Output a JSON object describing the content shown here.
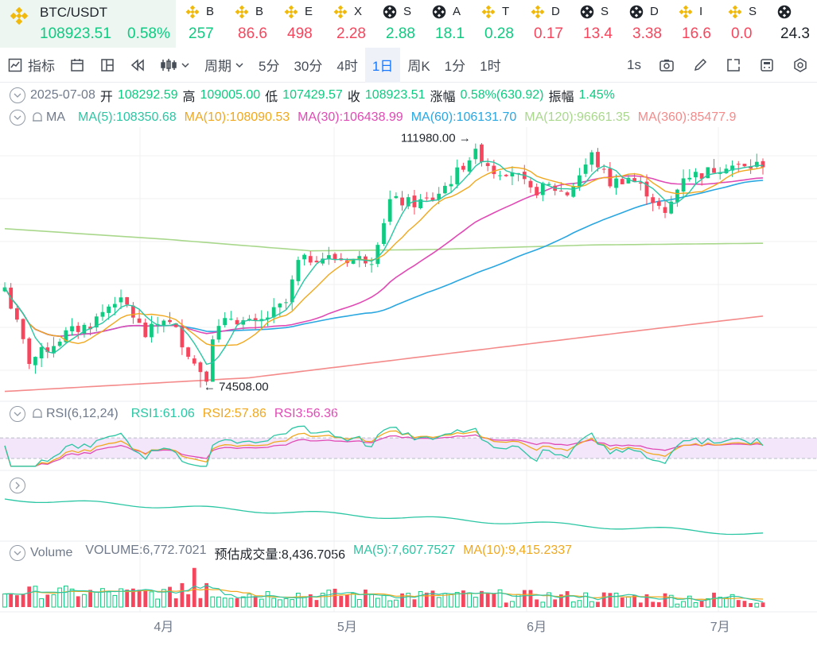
{
  "pair": {
    "name": "BTC/USDT",
    "price": "108923.51",
    "change": "0.58%"
  },
  "tickers": [
    {
      "icon": "bnb",
      "name": "B",
      "value": "257",
      "dir": "up"
    },
    {
      "icon": "bnb",
      "name": "B",
      "value": "86.6",
      "dir": "dn"
    },
    {
      "icon": "bnb",
      "name": "E",
      "value": "498",
      "dir": "dn"
    },
    {
      "icon": "bnb",
      "name": "X",
      "value": "2.28",
      "dir": "dn"
    },
    {
      "icon": "chain",
      "name": "S",
      "value": "2.88",
      "dir": "up"
    },
    {
      "icon": "chain",
      "name": "A",
      "value": "18.1",
      "dir": "up"
    },
    {
      "icon": "bnb",
      "name": "T",
      "value": "0.28",
      "dir": "up"
    },
    {
      "icon": "bnb",
      "name": "D",
      "value": "0.17",
      "dir": "dn"
    },
    {
      "icon": "chain",
      "name": "S",
      "value": "13.4",
      "dir": "dn"
    },
    {
      "icon": "chain",
      "name": "D",
      "value": "3.38",
      "dir": "dn"
    },
    {
      "icon": "bnb",
      "name": "I",
      "value": "16.6",
      "dir": "dn"
    },
    {
      "icon": "bnb",
      "name": "S",
      "value": "0.0",
      "dir": "dn"
    },
    {
      "icon": "chain",
      "name": "",
      "value": "24.3",
      "dir": "neu"
    }
  ],
  "toolbar": {
    "indicator": "指标",
    "period": "周期",
    "intervals": [
      "5分",
      "30分",
      "4时",
      "1日",
      "周K",
      "1分",
      "1时"
    ],
    "active": "1日",
    "refresh": "1s"
  },
  "ohlc": {
    "date": "2025-07-08",
    "open_l": "开",
    "open": "108292.59",
    "high_l": "高",
    "high": "109005.00",
    "low_l": "低",
    "low": "107429.57",
    "close_l": "收",
    "close": "108923.51",
    "chg_l": "涨幅",
    "chg": "0.58%(630.92)",
    "amp_l": "振幅",
    "amp": "1.45%"
  },
  "ma_legend": {
    "name": "MA",
    "items": [
      {
        "label": "MA(5):108350.68",
        "color": "#2bc6a3"
      },
      {
        "label": "MA(10):108090.53",
        "color": "#f0a81e"
      },
      {
        "label": "MA(30):106438.99",
        "color": "#e04ab4"
      },
      {
        "label": "MA(60):106131.70",
        "color": "#2aa7e0"
      },
      {
        "label": "MA(120):96661.35",
        "color": "#a9d88c"
      },
      {
        "label": "MA(360):85477.9",
        "color": "#f48a8a"
      }
    ]
  },
  "rsi_legend": {
    "name": "RSI(6,12,24)",
    "items": [
      {
        "label": "RSI1:61.06",
        "color": "#2bc6a3"
      },
      {
        "label": "RSI2:57.86",
        "color": "#f0a81e"
      },
      {
        "label": "RSI3:56.36",
        "color": "#e04ab4"
      }
    ]
  },
  "volume_legend": {
    "name": "Volume",
    "items": [
      {
        "label": "VOLUME:6,772.7021",
        "color": "#707a8a"
      },
      {
        "label": "预估成交量:8,436.7056",
        "color": "#1e2329"
      },
      {
        "label": "MA(5):7,607.7527",
        "color": "#2bc6a3"
      },
      {
        "label": "MA(10):9,415.2337",
        "color": "#f0a81e"
      }
    ]
  },
  "colors": {
    "up": "#0ecb81",
    "down": "#f6465d",
    "grid": "#f0f1f3",
    "rsi_band": "#f3e6fb"
  },
  "chart_data": {
    "type": "candlestick",
    "interval": "1d",
    "start_date": "2025-03-06",
    "end_date": "2025-07-08",
    "price_range": [
      73000,
      114500
    ],
    "max_marker": {
      "label": "111980.00",
      "date": "2025-05-22",
      "value": 111980
    },
    "min_marker": {
      "label": "74508.00",
      "date": "2025-04-07",
      "value": 74508
    },
    "x_ticks": [
      {
        "label": "4月",
        "date": "2025-04-01"
      },
      {
        "label": "5月",
        "date": "2025-05-01"
      },
      {
        "label": "6月",
        "date": "2025-06-01"
      },
      {
        "label": "7月",
        "date": "2025-07-01"
      }
    ],
    "close_path": [
      [
        "2025-03-06",
        89900
      ],
      [
        "2025-03-10",
        78600
      ],
      [
        "2025-03-13",
        80500
      ],
      [
        "2025-03-16",
        82800
      ],
      [
        "2025-03-20",
        84200
      ],
      [
        "2025-03-24",
        88000
      ],
      [
        "2025-03-26",
        87000
      ],
      [
        "2025-03-29",
        82500
      ],
      [
        "2025-04-01",
        85200
      ],
      [
        "2025-04-03",
        83200
      ],
      [
        "2025-04-06",
        78200
      ],
      [
        "2025-04-08",
        76300
      ],
      [
        "2025-04-09",
        82600
      ],
      [
        "2025-04-12",
        85300
      ],
      [
        "2025-04-16",
        84000
      ],
      [
        "2025-04-21",
        87500
      ],
      [
        "2025-04-23",
        93700
      ],
      [
        "2025-04-26",
        94600
      ],
      [
        "2025-04-30",
        94200
      ],
      [
        "2025-05-05",
        94300
      ],
      [
        "2025-05-08",
        103200
      ],
      [
        "2025-05-12",
        102800
      ],
      [
        "2025-05-15",
        103500
      ],
      [
        "2025-05-18",
        106400
      ],
      [
        "2025-05-22",
        111000
      ],
      [
        "2025-05-25",
        107800
      ],
      [
        "2025-05-28",
        107900
      ],
      [
        "2025-05-31",
        104500
      ],
      [
        "2025-06-03",
        105400
      ],
      [
        "2025-06-06",
        104300
      ],
      [
        "2025-06-10",
        110200
      ],
      [
        "2025-06-13",
        105900
      ],
      [
        "2025-06-16",
        106800
      ],
      [
        "2025-06-19",
        104600
      ],
      [
        "2025-06-22",
        100800
      ],
      [
        "2025-06-25",
        107100
      ],
      [
        "2025-06-28",
        107300
      ],
      [
        "2025-07-02",
        108800
      ],
      [
        "2025-07-05",
        108200
      ],
      [
        "2025-07-08",
        108923.51
      ]
    ],
    "moving_averages": [
      {
        "name": "MA(120)",
        "points": [
          [
            "2025-03-06",
            98900
          ],
          [
            "2025-04-01",
            97300
          ],
          [
            "2025-04-25",
            95500
          ],
          [
            "2025-05-15",
            95700
          ],
          [
            "2025-06-10",
            96400
          ],
          [
            "2025-07-08",
            96660
          ]
        ]
      },
      {
        "name": "MA(360)",
        "points": [
          [
            "2025-03-06",
            73900
          ],
          [
            "2025-04-15",
            76000
          ],
          [
            "2025-05-20",
            80000
          ],
          [
            "2025-06-20",
            83500
          ],
          [
            "2025-07-08",
            85480
          ]
        ]
      }
    ],
    "rsi": {
      "overbought": 70,
      "oversold": 30,
      "rsi1": 61.06,
      "rsi2": 57.86,
      "rsi3": 56.36
    },
    "volume": {
      "last": 6772.7021,
      "estimate": 8436.7056,
      "ma5": 7607.7527,
      "ma10": 9415.2337
    }
  }
}
